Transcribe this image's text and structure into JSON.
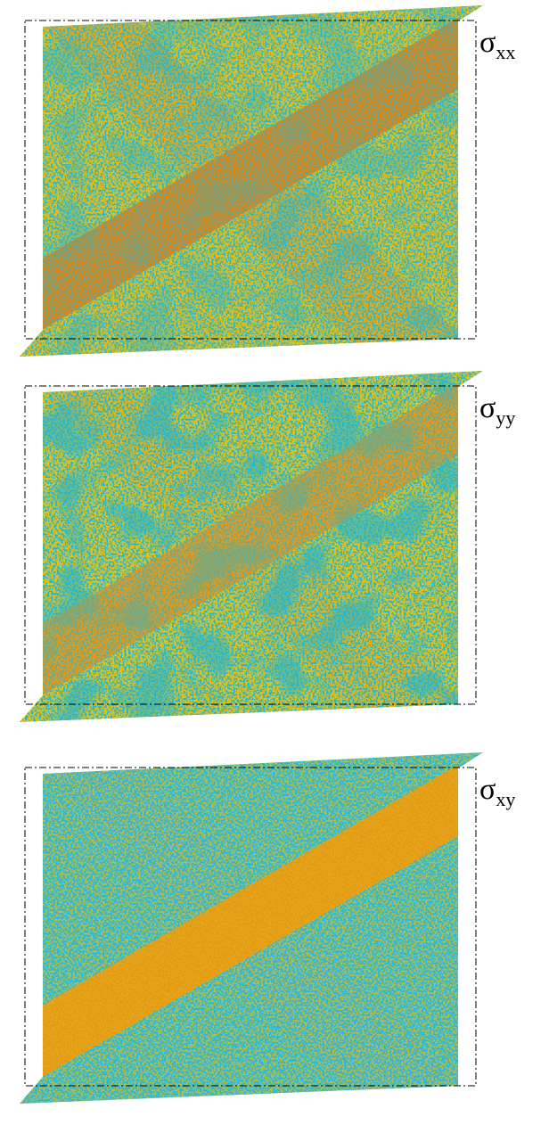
{
  "panels": [
    {
      "label": {
        "symbol": "σ",
        "subscript": "xx"
      }
    },
    {
      "label": {
        "symbol": "σ",
        "subscript": "yy"
      }
    },
    {
      "label": {
        "symbol": "σ",
        "subscript": "xy"
      }
    }
  ]
}
